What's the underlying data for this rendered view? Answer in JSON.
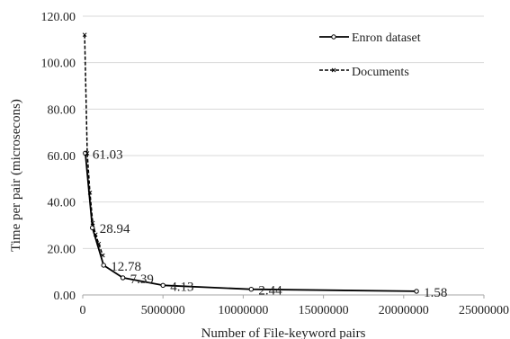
{
  "chart_data": {
    "type": "line",
    "title": "",
    "xlabel": "Number of File-keyword pairs",
    "ylabel": "Time per pair (microsecons)",
    "xlim": [
      0,
      25000000
    ],
    "ylim": [
      0,
      120
    ],
    "x_ticks": [
      0,
      5000000,
      10000000,
      15000000,
      20000000,
      25000000
    ],
    "x_tick_labels": [
      "0",
      "5000000",
      "10000000",
      "15000000",
      "20000000",
      "25000000"
    ],
    "y_ticks": [
      0,
      20,
      40,
      60,
      80,
      100,
      120
    ],
    "y_tick_labels": [
      "0.00",
      "20.00",
      "40.00",
      "60.00",
      "80.00",
      "100.00",
      "120.00"
    ],
    "grid": "horizontal",
    "legend_position": "top-right",
    "series": [
      {
        "name": "Enron dataset",
        "style": "solid",
        "marker": "circle",
        "color": "#000000",
        "x": [
          160000,
          600000,
          1300000,
          2500000,
          5000000,
          10500000,
          20800000
        ],
        "y": [
          61.03,
          28.94,
          12.78,
          7.39,
          4.13,
          2.44,
          1.58
        ],
        "labels": [
          "61.03",
          "28.94",
          "12.78",
          "7.39",
          "4.13",
          "2.44",
          "1.58"
        ]
      },
      {
        "name": "Documents",
        "style": "dashed",
        "marker": "x",
        "color": "#000000",
        "x": [
          120000,
          280000,
          450000,
          620000,
          800000,
          1000000,
          1250000
        ],
        "y": [
          112,
          61,
          44,
          31,
          26,
          22,
          17
        ],
        "labels": []
      }
    ]
  }
}
